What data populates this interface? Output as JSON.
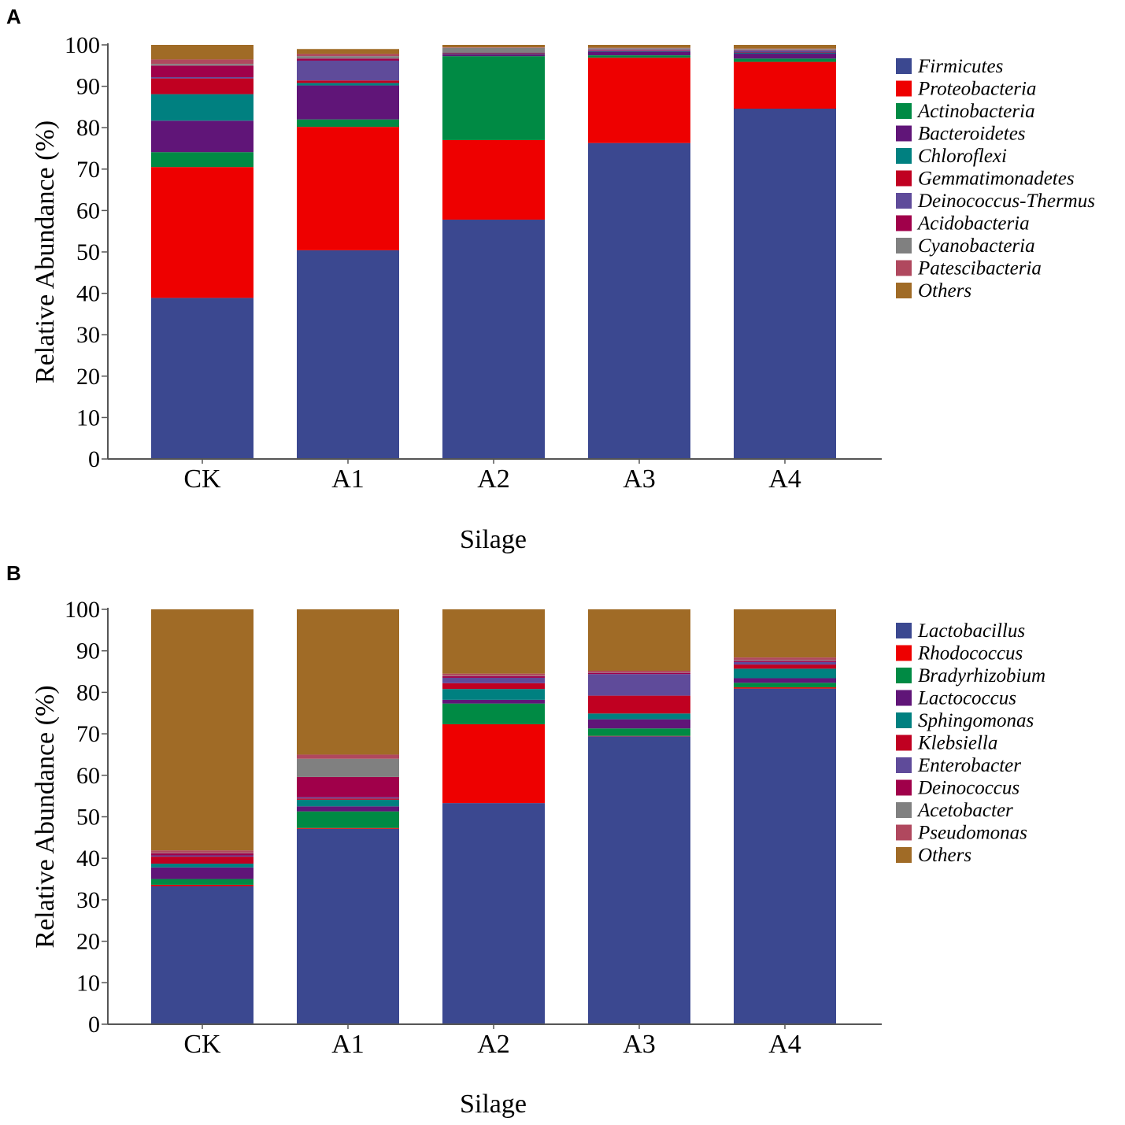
{
  "colors": {
    "Firmicutes": "#3b4890",
    "Proteobacteria": "#ee0000",
    "Actinobacteria": "#008a44",
    "Bacteroidetes": "#601578",
    "Chloroflexi": "#008080",
    "Gemmatimonadetes": "#c00021",
    "Deinococcus-Thermus": "#5f4b9a",
    "Acidobacteria": "#a0004a",
    "Cyanobacteria": "#808080",
    "Patescibacteria": "#b0485e",
    "Others": "#a06b26",
    "Lactobacillus": "#3b4890",
    "Rhodococcus": "#ee0000",
    "Bradyrhizobium": "#008a44",
    "Lactococcus": "#601578",
    "Sphingomonas": "#008080",
    "Klebsiella": "#c00021",
    "Enterobacter": "#5f4b9a",
    "Deinococcus": "#a0004a",
    "Acetobacter": "#808080",
    "Pseudomonas": "#b0485e"
  },
  "chart_data": [
    {
      "panel": "A",
      "type": "bar",
      "stacked": true,
      "title": "",
      "xlabel": "Silage",
      "ylabel": "Relative Abundance (%)",
      "ylim": [
        0,
        100
      ],
      "yticks": [
        0,
        10,
        20,
        30,
        40,
        50,
        60,
        70,
        80,
        90,
        100
      ],
      "categories": [
        "CK",
        "A1",
        "A2",
        "A3",
        "A4"
      ],
      "legend_position": "right",
      "series": [
        {
          "name": "Firmicutes",
          "values": [
            38.9,
            50.4,
            57.8,
            76.3,
            84.6
          ]
        },
        {
          "name": "Proteobacteria",
          "values": [
            31.6,
            29.8,
            19.2,
            20.6,
            11.3
          ]
        },
        {
          "name": "Actinobacteria",
          "values": [
            3.6,
            1.8,
            20.3,
            0.6,
            0.8
          ]
        },
        {
          "name": "Bacteroidetes",
          "values": [
            7.6,
            8.2,
            0.4,
            0.9,
            1.2
          ]
        },
        {
          "name": "Chloroflexi",
          "values": [
            6.4,
            0.6,
            0.1,
            0.1,
            0.2
          ]
        },
        {
          "name": "Gemmatimonadetes",
          "values": [
            3.8,
            0.6,
            0.1,
            0.1,
            0.1
          ]
        },
        {
          "name": "Deinococcus-Thermus",
          "values": [
            0.3,
            4.8,
            0.1,
            0.2,
            0.4
          ]
        },
        {
          "name": "Acidobacteria",
          "values": [
            2.8,
            0.5,
            0.1,
            0.1,
            0.1
          ]
        },
        {
          "name": "Cyanobacteria",
          "values": [
            0.4,
            0.6,
            1.2,
            0.3,
            0.3
          ]
        },
        {
          "name": "Patescibacteria",
          "values": [
            1.1,
            0.5,
            0.1,
            0.1,
            0.1
          ]
        },
        {
          "name": "Others",
          "values": [
            3.5,
            1.2,
            0.6,
            0.7,
            0.9
          ]
        }
      ]
    },
    {
      "panel": "B",
      "type": "bar",
      "stacked": true,
      "title": "",
      "xlabel": "Silage",
      "ylabel": "Relative Abundance (%)",
      "ylim": [
        0,
        100
      ],
      "yticks": [
        0,
        10,
        20,
        30,
        40,
        50,
        60,
        70,
        80,
        90,
        100
      ],
      "categories": [
        "CK",
        "A1",
        "A2",
        "A3",
        "A4"
      ],
      "legend_position": "right",
      "series": [
        {
          "name": "Lactobacillus",
          "values": [
            33.3,
            47.1,
            53.3,
            69.4,
            80.9
          ]
        },
        {
          "name": "Rhodococcus",
          "values": [
            0.3,
            0.2,
            19.0,
            0.1,
            0.3
          ]
        },
        {
          "name": "Bradyrhizobium",
          "values": [
            1.4,
            4.0,
            5.0,
            1.8,
            1.1
          ]
        },
        {
          "name": "Lactococcus",
          "values": [
            2.8,
            1.2,
            0.9,
            2.2,
            1.1
          ]
        },
        {
          "name": "Sphingomonas",
          "values": [
            0.9,
            1.6,
            2.6,
            1.4,
            2.3
          ]
        },
        {
          "name": "Klebsiella",
          "values": [
            1.7,
            0.3,
            1.4,
            4.3,
            1.0
          ]
        },
        {
          "name": "Enterobacter",
          "values": [
            0.3,
            0.3,
            1.3,
            5.2,
            0.6
          ]
        },
        {
          "name": "Deinococcus",
          "values": [
            0.5,
            4.9,
            0.4,
            0.3,
            0.3
          ]
        },
        {
          "name": "Acetobacter",
          "values": [
            0.1,
            4.4,
            0.1,
            0.1,
            0.2
          ]
        },
        {
          "name": "Pseudomonas",
          "values": [
            0.6,
            1.0,
            0.5,
            0.4,
            0.6
          ]
        },
        {
          "name": "Others",
          "values": [
            58.1,
            35.0,
            15.5,
            14.8,
            11.6
          ]
        }
      ]
    }
  ],
  "panels": [
    {
      "letter": "A"
    },
    {
      "letter": "B"
    }
  ]
}
